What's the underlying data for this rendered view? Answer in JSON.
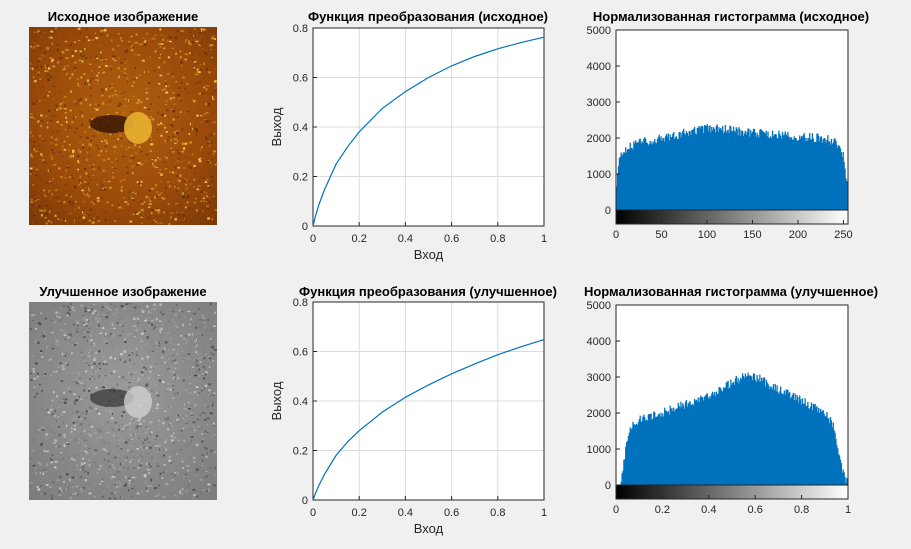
{
  "chart_data": [
    {
      "type": "image",
      "title": "Исходное изображение",
      "colormap": "hot-brown",
      "colors": [
        "#5a2b08",
        "#a6520f",
        "#e0a020",
        "#ffe060"
      ]
    },
    {
      "type": "line",
      "title": "Функция преобразования (исходное)",
      "xlabel": "Вход",
      "ylabel": "Выход",
      "xlim": [
        0,
        1
      ],
      "ylim": [
        0,
        0.8
      ],
      "xticks": [
        "0",
        "0.2",
        "0.4",
        "0.6",
        "0.8",
        "1"
      ],
      "yticks": [
        "0",
        "0.2",
        "0.4",
        "0.6",
        "0.8"
      ],
      "grid": true,
      "series": [
        {
          "color": "#0072bd",
          "x": [
            0,
            0.01,
            0.025,
            0.05,
            0.1,
            0.15,
            0.2,
            0.3,
            0.4,
            0.5,
            0.6,
            0.7,
            0.8,
            0.9,
            1.0
          ],
          "y": [
            0,
            0.038,
            0.085,
            0.148,
            0.25,
            0.32,
            0.38,
            0.475,
            0.543,
            0.6,
            0.647,
            0.685,
            0.716,
            0.741,
            0.763
          ]
        }
      ]
    },
    {
      "type": "bar",
      "title": "Нормализованная гистограмма (исходное)",
      "xlim": [
        0,
        255
      ],
      "ylim": [
        0,
        5000
      ],
      "xticks": [
        "0",
        "50",
        "100",
        "150",
        "200",
        "250"
      ],
      "yticks": [
        "0",
        "1000",
        "2000",
        "3000",
        "4000",
        "5000"
      ],
      "colorbar": "gray",
      "color": "#0072bd",
      "envelope_x": [
        0,
        3,
        8,
        20,
        40,
        60,
        80,
        100,
        120,
        140,
        160,
        180,
        200,
        220,
        235,
        245,
        250,
        255
      ],
      "envelope_y": [
        600,
        1300,
        1650,
        1830,
        1950,
        2050,
        2180,
        2260,
        2250,
        2170,
        2120,
        2080,
        2050,
        2000,
        1950,
        1820,
        1450,
        500
      ]
    },
    {
      "type": "image",
      "title": "Улучшенное изображение",
      "colormap": "gray",
      "colors": [
        "#3c3c3c",
        "#7a7a7a",
        "#a8a8a8",
        "#d8d8d8"
      ]
    },
    {
      "type": "line",
      "title": "Функция преобразования (улучшенное)",
      "xlabel": "Вход",
      "ylabel": "Выход",
      "xlim": [
        0,
        1
      ],
      "ylim": [
        0,
        0.8
      ],
      "xticks": [
        "0",
        "0.2",
        "0.4",
        "0.6",
        "0.8",
        "1"
      ],
      "yticks": [
        "0",
        "0.2",
        "0.4",
        "0.6",
        "0.8"
      ],
      "grid": true,
      "series": [
        {
          "color": "#0072bd",
          "x": [
            0,
            0.01,
            0.025,
            0.05,
            0.1,
            0.15,
            0.2,
            0.3,
            0.4,
            0.5,
            0.6,
            0.7,
            0.8,
            0.9,
            1.0
          ],
          "y": [
            0,
            0.025,
            0.058,
            0.105,
            0.18,
            0.235,
            0.28,
            0.355,
            0.415,
            0.465,
            0.51,
            0.55,
            0.587,
            0.619,
            0.648
          ]
        }
      ]
    },
    {
      "type": "bar",
      "title": "Нормализованная гистограмма (улучшенное)",
      "xlim": [
        0,
        1
      ],
      "ylim": [
        0,
        5000
      ],
      "xticks": [
        "0",
        "0.2",
        "0.4",
        "0.6",
        "0.8",
        "1"
      ],
      "yticks": [
        "0",
        "1000",
        "2000",
        "3000",
        "4000",
        "5000"
      ],
      "colorbar": "gray",
      "color": "#0072bd",
      "envelope_x": [
        0,
        0.02,
        0.04,
        0.06,
        0.1,
        0.2,
        0.3,
        0.4,
        0.5,
        0.55,
        0.6,
        0.7,
        0.8,
        0.9,
        0.94,
        0.96,
        0.98,
        1.0
      ],
      "envelope_y": [
        0,
        0,
        900,
        1600,
        1800,
        2000,
        2250,
        2450,
        2850,
        3000,
        3000,
        2650,
        2350,
        2000,
        1600,
        900,
        300,
        0
      ]
    }
  ]
}
